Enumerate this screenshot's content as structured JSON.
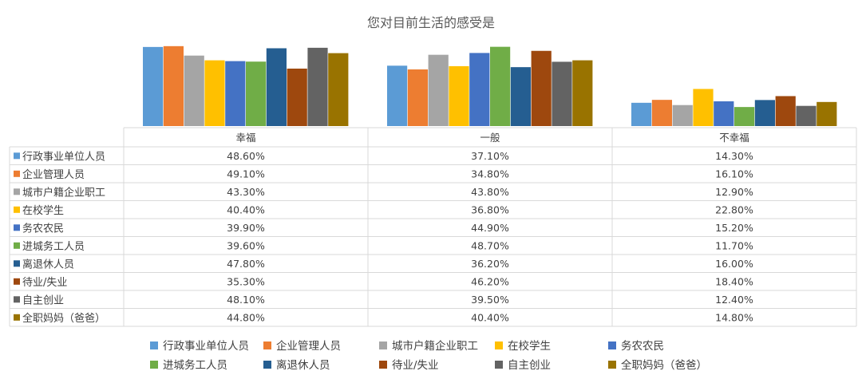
{
  "chart_data": {
    "type": "bar",
    "title": "您对目前生活的感受是",
    "categories": [
      "幸福",
      "一般",
      "不幸福"
    ],
    "series": [
      {
        "name": "行政事业单位人员",
        "color": "#5B9BD5",
        "values": [
          48.6,
          37.1,
          14.3
        ],
        "labels": [
          "48.60%",
          "37.10%",
          "14.30%"
        ]
      },
      {
        "name": "企业管理人员",
        "color": "#ED7D31",
        "values": [
          49.1,
          34.8,
          16.1
        ],
        "labels": [
          "49.10%",
          "34.80%",
          "16.10%"
        ]
      },
      {
        "name": "城市户籍企业职工",
        "color": "#A5A5A5",
        "values": [
          43.3,
          43.8,
          12.9
        ],
        "labels": [
          "43.30%",
          "43.80%",
          "12.90%"
        ]
      },
      {
        "name": "在校学生",
        "color": "#FFC000",
        "values": [
          40.4,
          36.8,
          22.8
        ],
        "labels": [
          "40.40%",
          "36.80%",
          "22.80%"
        ]
      },
      {
        "name": "务农农民",
        "color": "#4472C4",
        "values": [
          39.9,
          44.9,
          15.2
        ],
        "labels": [
          "39.90%",
          "44.90%",
          "15.20%"
        ]
      },
      {
        "name": "进城务工人员",
        "color": "#70AD47",
        "values": [
          39.6,
          48.7,
          11.7
        ],
        "labels": [
          "39.60%",
          "48.70%",
          "11.70%"
        ]
      },
      {
        "name": "离退休人员",
        "color": "#255E91",
        "values": [
          47.8,
          36.2,
          16.0
        ],
        "labels": [
          "47.80%",
          "36.20%",
          "16.00%"
        ]
      },
      {
        "name": "待业/失业",
        "color": "#9E480E",
        "values": [
          35.3,
          46.2,
          18.4
        ],
        "labels": [
          "35.30%",
          "46.20%",
          "18.40%"
        ]
      },
      {
        "name": "自主创业",
        "color": "#636363",
        "values": [
          48.1,
          39.5,
          12.4
        ],
        "labels": [
          "48.10%",
          "39.50%",
          "12.40%"
        ]
      },
      {
        "name": "全职妈妈（爸爸）",
        "color": "#997300",
        "values": [
          44.8,
          40.4,
          14.8
        ],
        "labels": [
          "44.80%",
          "40.40%",
          "14.80%"
        ]
      }
    ],
    "ylim": [
      0,
      50
    ],
    "grid": false,
    "data_table": true,
    "legend_position": "bottom"
  }
}
